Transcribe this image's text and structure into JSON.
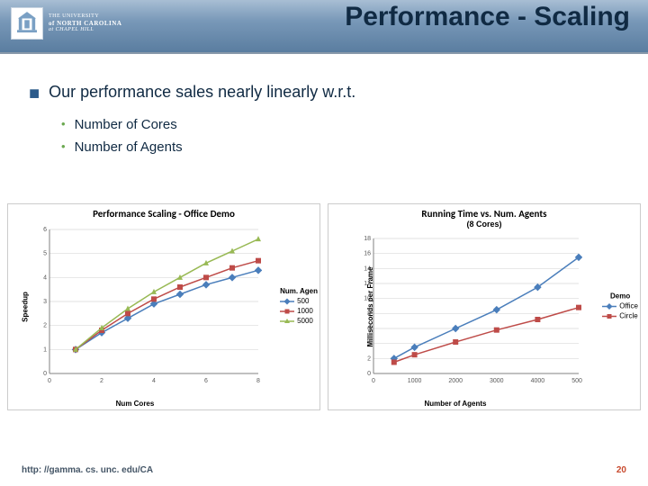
{
  "header": {
    "title": "Performance - Scaling",
    "logo_text_l1": "THE UNIVERSITY",
    "logo_text_l2": "of NORTH CAROLINA",
    "logo_text_l3": "at CHAPEL HILL",
    "band_gradient_top": "#a8bed4",
    "band_gradient_bottom": "#5a7da0"
  },
  "bullets": {
    "l1_text": "Our performance sales nearly linearly w.r.t.",
    "l1_marker": "■",
    "l1_marker_color": "#2b5a8a",
    "l2a_text": "Number of Cores",
    "l2b_text": "Number of Agents",
    "l2_marker": "•",
    "l2_marker_color": "#6aa84f",
    "text_color": "#102a43"
  },
  "chart_left": {
    "type": "line",
    "title": "Performance Scaling - Office Demo",
    "xlabel": "Num Cores",
    "ylabel": "Speedup",
    "legend_title": "Num. Agen",
    "xlim": [
      0,
      8
    ],
    "xtick_step": 2,
    "ylim": [
      0,
      6
    ],
    "ytick_step": 1,
    "grid_color": "#d9d9d9",
    "axis_color": "#808080",
    "background_color": "#ffffff",
    "tick_fontsize": 7,
    "series": [
      {
        "name": "500",
        "color": "#4a7ebb",
        "marker": "diamond",
        "x": [
          1,
          2,
          3,
          4,
          5,
          6,
          7,
          8
        ],
        "y": [
          1.0,
          1.7,
          2.3,
          2.9,
          3.3,
          3.7,
          4.0,
          4.3
        ]
      },
      {
        "name": "1000",
        "color": "#be4b48",
        "marker": "square",
        "x": [
          1,
          2,
          3,
          4,
          5,
          6,
          7,
          8
        ],
        "y": [
          1.0,
          1.8,
          2.5,
          3.1,
          3.6,
          4.0,
          4.4,
          4.7
        ]
      },
      {
        "name": "5000",
        "color": "#98b954",
        "marker": "triangle",
        "x": [
          1,
          2,
          3,
          4,
          5,
          6,
          7,
          8
        ],
        "y": [
          1.0,
          1.9,
          2.7,
          3.4,
          4.0,
          4.6,
          5.1,
          5.6
        ]
      }
    ]
  },
  "chart_right": {
    "type": "line",
    "title": "Running Time vs. Num. Agents",
    "subtitle": "(8 Cores)",
    "xlabel": "Number of Agents",
    "ylabel": "Milliseconds per Frame",
    "legend_title": "Demo",
    "xlim": [
      0,
      5000
    ],
    "xtick_step": 1000,
    "ylim": [
      0,
      18
    ],
    "ytick_step": 2,
    "grid_color": "#d9d9d9",
    "axis_color": "#808080",
    "background_color": "#ffffff",
    "tick_fontsize": 7,
    "series": [
      {
        "name": "Office",
        "color": "#4a7ebb",
        "marker": "diamond",
        "x": [
          500,
          1000,
          2000,
          3000,
          4000,
          5000
        ],
        "y": [
          2.0,
          3.5,
          6.0,
          8.5,
          11.5,
          15.5
        ]
      },
      {
        "name": "Circle",
        "color": "#be4b48",
        "marker": "square",
        "x": [
          500,
          1000,
          2000,
          3000,
          4000,
          5000
        ],
        "y": [
          1.5,
          2.5,
          4.2,
          5.8,
          7.2,
          8.8
        ]
      }
    ]
  },
  "footer": {
    "url": "http: //gamma. cs. unc. edu/CA",
    "page_num": "20",
    "url_color": "#445566",
    "num_color": "#c84a2e"
  }
}
